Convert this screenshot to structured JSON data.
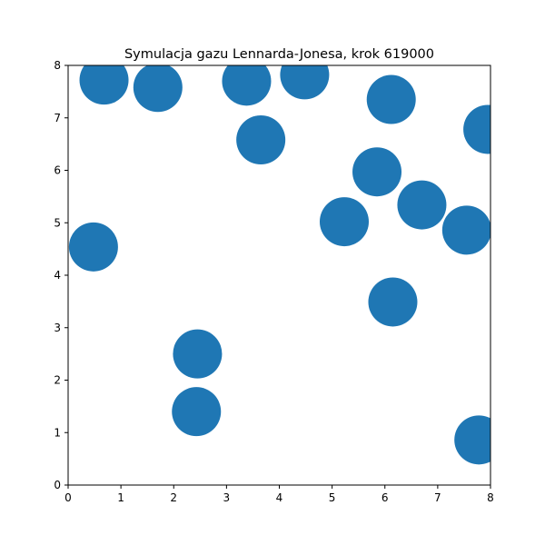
{
  "chart_data": {
    "type": "scatter",
    "title": "Symulacja gazu Lennarda-Jonesa, krok 619000",
    "xlabel": "",
    "ylabel": "",
    "xlim": [
      0,
      8
    ],
    "ylim": [
      0,
      8
    ],
    "xticks": [
      "0",
      "1",
      "2",
      "3",
      "4",
      "5",
      "6",
      "7",
      "8"
    ],
    "yticks": [
      "0",
      "1",
      "2",
      "3",
      "4",
      "5",
      "6",
      "7",
      "8"
    ],
    "grid": false,
    "marker_color": "#1f77b4",
    "points": [
      {
        "x": 0.68,
        "y": 7.72
      },
      {
        "x": 1.7,
        "y": 7.58
      },
      {
        "x": 3.38,
        "y": 7.7
      },
      {
        "x": 4.48,
        "y": 7.82
      },
      {
        "x": 3.65,
        "y": 6.58
      },
      {
        "x": 6.12,
        "y": 7.35
      },
      {
        "x": 7.95,
        "y": 6.78
      },
      {
        "x": 5.85,
        "y": 5.97
      },
      {
        "x": 6.7,
        "y": 5.34
      },
      {
        "x": 5.23,
        "y": 5.02
      },
      {
        "x": 7.55,
        "y": 4.86
      },
      {
        "x": 0.48,
        "y": 4.54
      },
      {
        "x": 6.15,
        "y": 3.49
      },
      {
        "x": 2.45,
        "y": 2.5
      },
      {
        "x": 2.43,
        "y": 1.4
      },
      {
        "x": 7.78,
        "y": 0.86
      }
    ]
  }
}
